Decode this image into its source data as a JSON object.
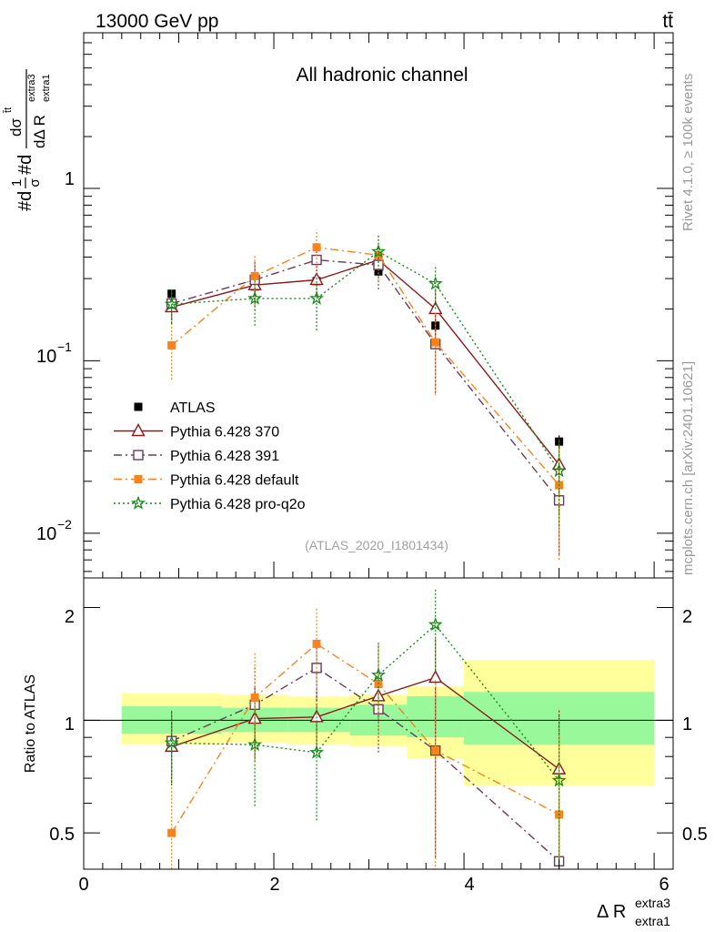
{
  "header": {
    "energy_label": "13000 GeV pp",
    "process_label": "tt̄"
  },
  "side_labels": {
    "rivet": "Rivet 4.1.0, ≥ 100k events",
    "source": "mcplots.cern.ch [arXiv:2401.10621]"
  },
  "chart_data": [
    {
      "panel": "main",
      "type": "line",
      "title": "All hadronic channel",
      "watermark": "(ATLAS_2020_I1801434)",
      "ylabel": "#dσ/#dΔR_extra1^extra3",
      "ylabel_parts": {
        "prefix": "#d",
        "frac1_num": "1",
        "frac1_den": "σ",
        "mid": "#d",
        "frac2_num": "dσ",
        "frac2_num_sup": "t̄t",
        "frac2_den": "dΔ R",
        "frac2_den_sup": "extra3",
        "frac2_den_sub": "extra1"
      },
      "yscale": "log",
      "ylim": [
        0.0055,
        8
      ],
      "xlim": [
        0,
        6.2
      ],
      "ytick_labels": {
        "one": "1",
        "e1_base": "10",
        "e1_exp": "−1",
        "e2_base": "10",
        "e2_exp": "−2"
      },
      "legend_position": "lower-left",
      "series": [
        {
          "name": "ATLAS",
          "key": "atlas",
          "color": "#000000",
          "marker": "filled-square",
          "line": "none",
          "x": [
            0.925,
            1.8,
            2.45,
            3.1,
            3.7,
            5.0
          ],
          "y": [
            0.245,
            0.27,
            0.29,
            0.33,
            0.16,
            0.034
          ],
          "err": [
            0.012,
            0.015,
            0.012,
            0.025,
            0.012,
            0.003
          ]
        },
        {
          "name": "Pythia 6.428 370",
          "key": "p370",
          "color": "#8b1a1a",
          "marker": "open-triangle",
          "line": "solid",
          "x": [
            0.925,
            1.8,
            2.45,
            3.1,
            3.7,
            5.0
          ],
          "y": [
            0.205,
            0.275,
            0.295,
            0.385,
            0.2,
            0.025
          ],
          "err": [
            0.04,
            0.08,
            0.06,
            0.07,
            0.06,
            0.012
          ]
        },
        {
          "name": "Pythia 6.428 391",
          "key": "p391",
          "color": "#6b3a5c",
          "marker": "open-square",
          "line": "dash-dot",
          "x": [
            0.925,
            1.8,
            2.45,
            3.1,
            3.7,
            5.0
          ],
          "y": [
            0.215,
            0.295,
            0.385,
            0.36,
            0.125,
            0.0155
          ],
          "err": [
            0.04,
            0.08,
            0.07,
            0.1,
            0.06,
            0.008
          ]
        },
        {
          "name": "Pythia 6.428 default",
          "key": "pdef",
          "color": "#f48320",
          "marker": "filled-square",
          "line": "dash-dot",
          "x": [
            0.925,
            1.8,
            2.45,
            3.1,
            3.7,
            5.0
          ],
          "y": [
            0.123,
            0.31,
            0.455,
            0.41,
            0.128,
            0.019
          ],
          "err": [
            0.045,
            0.1,
            0.12,
            0.12,
            0.065,
            0.012
          ]
        },
        {
          "name": "Pythia 6.428 pro-q2o",
          "key": "pq2o",
          "color": "#138a13",
          "marker": "star",
          "line": "dotted",
          "x": [
            0.925,
            1.8,
            2.45,
            3.1,
            3.7,
            5.0
          ],
          "y": [
            0.213,
            0.23,
            0.23,
            0.43,
            0.28,
            0.023
          ],
          "err": [
            0.05,
            0.07,
            0.08,
            0.11,
            0.08,
            0.012
          ]
        }
      ]
    },
    {
      "panel": "ratio",
      "type": "line",
      "ylabel": "Ratio to ATLAS",
      "yscale": "log",
      "ylim": [
        0.4,
        2.4
      ],
      "xlim": [
        0,
        6.2
      ],
      "xlabel": "Δ R",
      "xlabel_sup": "extra3",
      "xlabel_sub": "extra1",
      "xticks": [
        0,
        2,
        4,
        6
      ],
      "xtick_labels": [
        "0",
        "2",
        "4",
        "6"
      ],
      "yticks": [
        0.5,
        1,
        2
      ],
      "ytick_labels": [
        "0.5",
        "1",
        "2"
      ],
      "uncertainty_bands": {
        "bin_edges": [
          0.4,
          1.45,
          2.15,
          2.8,
          3.4,
          4.0,
          6.0
        ],
        "inner": [
          [
            0.92,
            1.09
          ],
          [
            0.93,
            1.08
          ],
          [
            0.93,
            1.08
          ],
          [
            0.91,
            1.1
          ],
          [
            0.9,
            1.16
          ],
          [
            0.86,
            1.19
          ]
        ],
        "outer": [
          [
            0.86,
            1.18
          ],
          [
            0.87,
            1.17
          ],
          [
            0.86,
            1.16
          ],
          [
            0.85,
            1.17
          ],
          [
            0.79,
            1.23
          ],
          [
            0.67,
            1.45
          ]
        ],
        "inner_color": "#99f899",
        "outer_color": "#ffff9c"
      },
      "series": [
        {
          "key": "p370",
          "color": "#8b1a1a",
          "marker": "open-triangle",
          "line": "solid",
          "x": [
            0.925,
            1.8,
            2.45,
            3.1,
            3.7,
            5.0
          ],
          "y": [
            0.85,
            1.01,
            1.02,
            1.16,
            1.3,
            0.74
          ],
          "err": [
            0.17,
            0.22,
            0.2,
            0.22,
            0.37,
            0.33
          ]
        },
        {
          "key": "p391",
          "color": "#6b3a5c",
          "marker": "open-square",
          "line": "dash-dot",
          "x": [
            0.925,
            1.8,
            2.45,
            3.1,
            3.7,
            5.0
          ],
          "y": [
            0.88,
            1.1,
            1.38,
            1.07,
            0.83,
            0.42
          ],
          "err": [
            0.17,
            0.3,
            0.25,
            0.25,
            0.4,
            0.2
          ]
        },
        {
          "key": "pdef",
          "color": "#f48320",
          "marker": "filled-square",
          "line": "dash-dot",
          "x": [
            0.925,
            1.8,
            2.45,
            3.1,
            3.7,
            5.0
          ],
          "y": [
            0.5,
            1.15,
            1.6,
            1.25,
            0.83,
            0.56
          ],
          "err": [
            0.18,
            0.37,
            0.4,
            0.35,
            0.45,
            0.35
          ]
        },
        {
          "key": "pq2o",
          "color": "#138a13",
          "marker": "star",
          "line": "dotted",
          "x": [
            0.925,
            1.8,
            2.45,
            3.1,
            3.7,
            5.0
          ],
          "y": [
            0.87,
            0.86,
            0.82,
            1.32,
            1.8,
            0.69
          ],
          "err": [
            0.2,
            0.27,
            0.28,
            0.3,
            0.45,
            0.35
          ]
        }
      ]
    }
  ]
}
